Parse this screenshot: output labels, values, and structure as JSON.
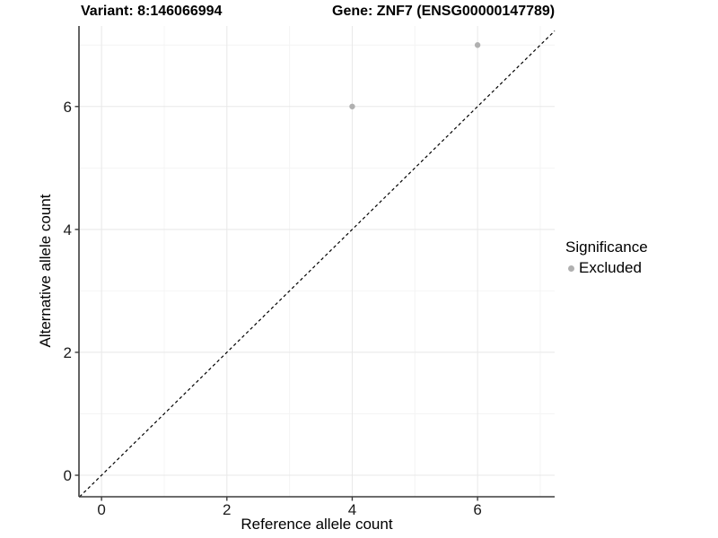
{
  "chart_data": {
    "type": "scatter",
    "titles": {
      "variant": "Variant: 8:146066994",
      "gene": "Gene: ZNF7 (ENSG00000147789)"
    },
    "xlabel": "Reference allele count",
    "ylabel": "Alternative allele count",
    "x_ticks": [
      0,
      2,
      4,
      6
    ],
    "y_ticks": [
      0,
      2,
      4,
      6
    ],
    "x_minor_ticks": [
      1,
      3,
      5,
      7
    ],
    "y_minor_ticks": [
      1,
      3,
      5,
      7
    ],
    "x_domain": [
      -0.36,
      7.23
    ],
    "y_domain": [
      -0.35,
      7.31
    ],
    "grid": true,
    "series": [
      {
        "name": "Excluded",
        "color": "#b0b0b0",
        "points": [
          {
            "x": 4,
            "y": 6
          },
          {
            "x": 6,
            "y": 7
          }
        ]
      }
    ],
    "identity_line": {
      "slope": 1,
      "intercept": 0,
      "style": "dashed",
      "color": "#000000"
    },
    "legend": {
      "title": "Significance",
      "position": "right",
      "items": [
        {
          "label": "Excluded",
          "color": "#b0b0b0"
        }
      ]
    },
    "style": {
      "background": "#ffffff",
      "major_grid_color": "#e8e8e8",
      "minor_grid_color": "#f4f4f4",
      "axis_line_color": "#3c3c3c",
      "tick_label_color": "#1a1a1a",
      "point_color": "#b0b0b0"
    }
  }
}
